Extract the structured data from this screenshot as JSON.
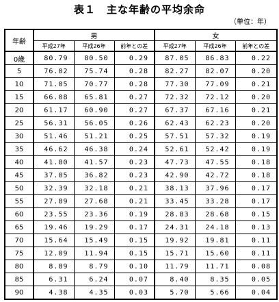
{
  "title": "表１　主な年齢の平均余命",
  "unit": "（単位：年）",
  "headers": {
    "age": "年齢",
    "male": "男",
    "female": "女",
    "h27": "平成27年",
    "h26": "平成26年",
    "diff": "前年との差"
  },
  "rows": [
    {
      "age": "0歳",
      "m27": "80.79",
      "m26": "80.50",
      "md": "0.29",
      "f27": "87.05",
      "f26": "86.83",
      "fd": "0.22"
    },
    {
      "age": "5",
      "m27": "76.02",
      "m26": "75.74",
      "md": "0.28",
      "f27": "82.27",
      "f26": "82.07",
      "fd": "0.20"
    },
    {
      "age": "10",
      "m27": "71.05",
      "m26": "70.77",
      "md": "0.28",
      "f27": "77.30",
      "f26": "77.09",
      "fd": "0.21"
    },
    {
      "age": "15",
      "m27": "66.08",
      "m26": "65.81",
      "md": "0.27",
      "f27": "72.32",
      "f26": "72.12",
      "fd": "0.20"
    },
    {
      "age": "20",
      "m27": "61.17",
      "m26": "60.90",
      "md": "0.27",
      "f27": "67.37",
      "f26": "67.16",
      "fd": "0.21"
    },
    {
      "age": "25",
      "m27": "56.31",
      "m26": "56.05",
      "md": "0.26",
      "f27": "62.43",
      "f26": "62.23",
      "fd": "0.20"
    },
    {
      "age": "30",
      "m27": "51.46",
      "m26": "51.21",
      "md": "0.25",
      "f27": "57.51",
      "f26": "57.32",
      "fd": "0.19"
    },
    {
      "age": "35",
      "m27": "46.62",
      "m26": "46.38",
      "md": "0.24",
      "f27": "52.61",
      "f26": "52.42",
      "fd": "0.19"
    },
    {
      "age": "40",
      "m27": "41.80",
      "m26": "41.57",
      "md": "0.23",
      "f27": "47.73",
      "f26": "47.55",
      "fd": "0.18"
    },
    {
      "age": "45",
      "m27": "37.05",
      "m26": "36.82",
      "md": "0.23",
      "f27": "42.90",
      "f26": "42.72",
      "fd": "0.18"
    },
    {
      "age": "50",
      "m27": "32.39",
      "m26": "32.18",
      "md": "0.21",
      "f27": "38.13",
      "f26": "37.96",
      "fd": "0.17"
    },
    {
      "age": "55",
      "m27": "27.89",
      "m26": "27.68",
      "md": "0.21",
      "f27": "33.45",
      "f26": "33.28",
      "fd": "0.17"
    },
    {
      "age": "60",
      "m27": "23.55",
      "m26": "23.36",
      "md": "0.19",
      "f27": "28.83",
      "f26": "28.68",
      "fd": "0.15"
    },
    {
      "age": "65",
      "m27": "19.46",
      "m26": "19.29",
      "md": "0.17",
      "f27": "24.31",
      "f26": "24.18",
      "fd": "0.13"
    },
    {
      "age": "70",
      "m27": "15.64",
      "m26": "15.49",
      "md": "0.15",
      "f27": "19.92",
      "f26": "19.81",
      "fd": "0.11"
    },
    {
      "age": "75",
      "m27": "12.09",
      "m26": "11.94",
      "md": "0.15",
      "f27": "15.71",
      "f26": "15.60",
      "fd": "0.11"
    },
    {
      "age": "80",
      "m27": "8.89",
      "m26": "8.79",
      "md": "0.10",
      "f27": "11.79",
      "f26": "11.71",
      "fd": "0.08"
    },
    {
      "age": "85",
      "m27": "6.31",
      "m26": "6.24",
      "md": "0.07",
      "f27": "8.40",
      "f26": "8.35",
      "fd": "0.05"
    },
    {
      "age": "90",
      "m27": "4.38",
      "m26": "4.35",
      "md": "0.03",
      "f27": "5.70",
      "f26": "5.66",
      "fd": "0.04"
    }
  ]
}
